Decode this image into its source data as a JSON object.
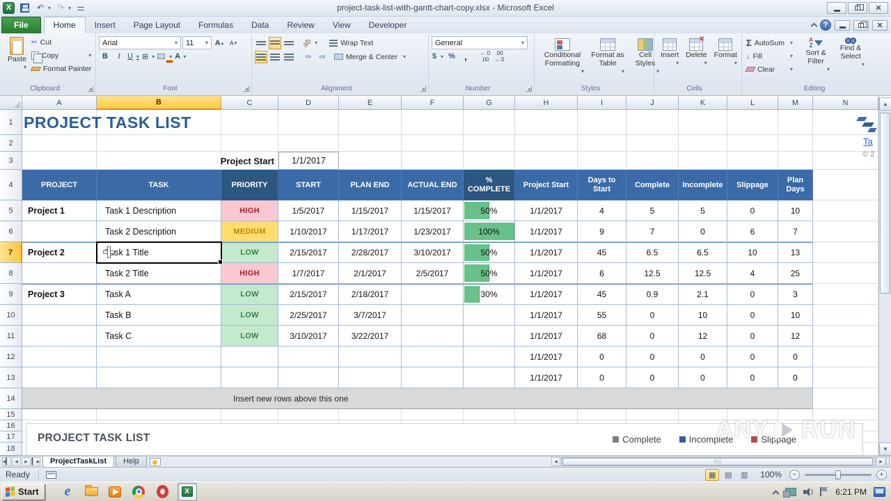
{
  "titlebar": {
    "title": "project-task-list-with-gantt-chart-copy.xlsx - Microsoft Excel"
  },
  "ribbon": {
    "tabs": [
      "File",
      "Home",
      "Insert",
      "Page Layout",
      "Formulas",
      "Data",
      "Review",
      "View",
      "Developer"
    ],
    "active_tab": "Home",
    "clipboard": {
      "label": "Clipboard",
      "paste": "Paste",
      "cut": "Cut",
      "copy": "Copy",
      "format_painter": "Format Painter"
    },
    "font": {
      "label": "Font",
      "family": "Arial",
      "size": "11",
      "bold": "B",
      "italic": "I",
      "underline": "U",
      "grow": "A",
      "shrink": "A"
    },
    "alignment": {
      "label": "Alignment",
      "wrap_text": "Wrap Text",
      "merge_center": "Merge & Center"
    },
    "number": {
      "label": "Number",
      "format": "General",
      "currency": "$",
      "percent": "%",
      "comma": ","
    },
    "styles": {
      "label": "Styles",
      "conditional": "Conditional Formatting",
      "format_table": "Format as Table",
      "cell_styles": "Cell Styles"
    },
    "cells": {
      "label": "Cells",
      "insert": "Insert",
      "delete": "Delete",
      "format": "Format"
    },
    "editing": {
      "label": "Editing",
      "autosum": "AutoSum",
      "sigma": "Σ",
      "fill": "Fill",
      "clear": "Clear",
      "sort_filter": "Sort & Filter",
      "find_select": "Find & Select"
    }
  },
  "grid": {
    "columns": [
      "A",
      "B",
      "C",
      "D",
      "E",
      "F",
      "G",
      "H",
      "I",
      "J",
      "K",
      "L",
      "M",
      "N"
    ],
    "rows": [
      "1",
      "2",
      "3",
      "4",
      "5",
      "6",
      "7",
      "8",
      "9",
      "10",
      "11",
      "12",
      "13",
      "14",
      "15",
      "16",
      "17",
      "18"
    ],
    "selected_column": "B",
    "selected_row": "7",
    "selected_cell": "B7"
  },
  "sheet": {
    "title": "PROJECT TASK LIST",
    "project_start_label": "Project Start",
    "project_start_value": "1/1/2017"
  },
  "table": {
    "headers": [
      "PROJECT",
      "TASK",
      "PRIORITY",
      "START",
      "PLAN END",
      "ACTUAL END",
      "% COMPLETE",
      "Project Start",
      "Days to Start",
      "Complete",
      "Incomplete",
      "Slippage",
      "Plan Days"
    ],
    "rows": [
      {
        "project": "Project 1",
        "task": "Task 1 Description",
        "priority": "HIGH",
        "start": "1/5/2017",
        "plan_end": "1/15/2017",
        "actual_end": "1/15/2017",
        "complete": "50%",
        "complete_pct": 50,
        "project_start": "1/1/2017",
        "days_to_start": "4",
        "complete_days": "5",
        "incomplete": "5",
        "slippage": "0",
        "plan_days": "10"
      },
      {
        "project": "",
        "task": "Task 2 Description",
        "priority": "MEDIUM",
        "start": "1/10/2017",
        "plan_end": "1/17/2017",
        "actual_end": "1/23/2017",
        "complete": "100%",
        "complete_pct": 100,
        "project_start": "1/1/2017",
        "days_to_start": "9",
        "complete_days": "7",
        "incomplete": "0",
        "slippage": "6",
        "plan_days": "7"
      },
      {
        "project": "Project 2",
        "task": "Task 1 Title",
        "priority": "LOW",
        "start": "2/15/2017",
        "plan_end": "2/28/2017",
        "actual_end": "3/10/2017",
        "complete": "50%",
        "complete_pct": 50,
        "project_start": "1/1/2017",
        "days_to_start": "45",
        "complete_days": "6.5",
        "incomplete": "6.5",
        "slippage": "10",
        "plan_days": "13"
      },
      {
        "project": "",
        "task": "Task 2 Title",
        "priority": "HIGH",
        "start": "1/7/2017",
        "plan_end": "2/1/2017",
        "actual_end": "2/5/2017",
        "complete": "50%",
        "complete_pct": 50,
        "project_start": "1/1/2017",
        "days_to_start": "6",
        "complete_days": "12.5",
        "incomplete": "12.5",
        "slippage": "4",
        "plan_days": "25"
      },
      {
        "project": "Project 3",
        "task": "Task A",
        "priority": "LOW",
        "start": "2/15/2017",
        "plan_end": "2/18/2017",
        "actual_end": "",
        "complete": "30%",
        "complete_pct": 30,
        "project_start": "1/1/2017",
        "days_to_start": "45",
        "complete_days": "0.9",
        "incomplete": "2.1",
        "slippage": "0",
        "plan_days": "3"
      },
      {
        "project": "",
        "task": "Task B",
        "priority": "LOW",
        "start": "2/25/2017",
        "plan_end": "3/7/2017",
        "actual_end": "",
        "complete": "",
        "complete_pct": null,
        "project_start": "1/1/2017",
        "days_to_start": "55",
        "complete_days": "0",
        "incomplete": "10",
        "slippage": "0",
        "plan_days": "10"
      },
      {
        "project": "",
        "task": "Task C",
        "priority": "LOW",
        "start": "3/10/2017",
        "plan_end": "3/22/2017",
        "actual_end": "",
        "complete": "",
        "complete_pct": null,
        "project_start": "1/1/2017",
        "days_to_start": "68",
        "complete_days": "0",
        "incomplete": "12",
        "slippage": "0",
        "plan_days": "12"
      },
      {
        "project": "",
        "task": "",
        "priority": "",
        "start": "",
        "plan_end": "",
        "actual_end": "",
        "complete": "",
        "complete_pct": null,
        "project_start": "1/1/2017",
        "days_to_start": "0",
        "complete_days": "0",
        "incomplete": "0",
        "slippage": "0",
        "plan_days": "0"
      },
      {
        "project": "",
        "task": "",
        "priority": "",
        "start": "",
        "plan_end": "",
        "actual_end": "",
        "complete": "",
        "complete_pct": null,
        "project_start": "1/1/2017",
        "days_to_start": "0",
        "complete_days": "0",
        "incomplete": "0",
        "slippage": "0",
        "plan_days": "0"
      }
    ],
    "insert_note": "Insert new rows above this one"
  },
  "chart": {
    "title": "PROJECT TASK LIST",
    "legend": [
      {
        "label": "Complete",
        "color": "#7F7F7F"
      },
      {
        "label": "Incomplete",
        "color": "#365F91"
      },
      {
        "label": "Slippage",
        "color": "#B94A48"
      }
    ]
  },
  "side": {
    "link_text": "Ta",
    "copyright": "© 2"
  },
  "sheet_tabs": {
    "tabs": [
      "ProjectTaskList",
      "Help"
    ],
    "active": "ProjectTaskList"
  },
  "status": {
    "mode": "Ready",
    "zoom": "100%"
  },
  "taskbar": {
    "start": "Start",
    "time": "6:21 PM"
  },
  "watermark": {
    "left": "ANY",
    "right": "RUN"
  },
  "colors": {
    "table_header": "#3A6BA8",
    "table_header_dark": "#2B5781",
    "bar_green": "#68C189",
    "priority_high_bg": "#FAC8D0",
    "priority_high_text": "#A21E2C",
    "priority_medium_bg": "#FFDC70",
    "priority_medium_text": "#B8860B",
    "priority_low_bg": "#C5E9CC",
    "priority_low_text": "#358246",
    "title_blue": "#2A5E96"
  }
}
